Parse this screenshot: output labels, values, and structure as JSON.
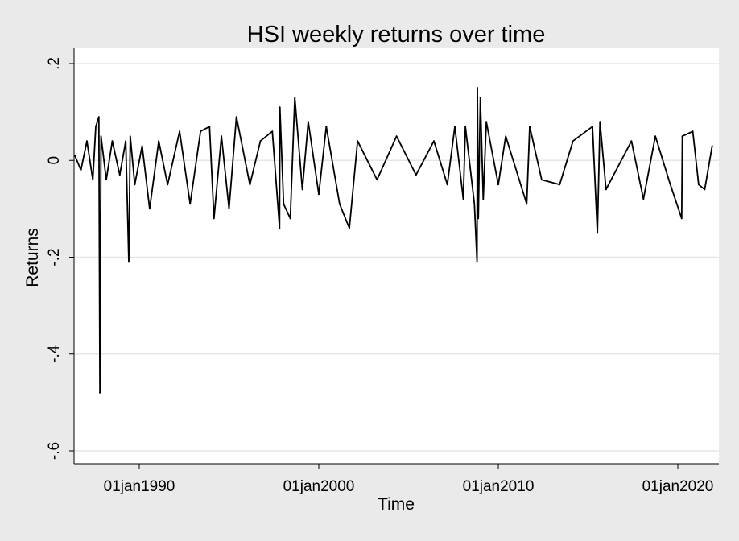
{
  "chart_data": {
    "type": "line",
    "title": "HSI weekly returns over time",
    "xlabel": "Time",
    "ylabel": "Returns",
    "ylim": [
      -0.6,
      0.2
    ],
    "xlim": [
      "1986-06-01",
      "2021-12-31"
    ],
    "y_ticks": [
      {
        "value": -0.6,
        "label": "-.6"
      },
      {
        "value": -0.4,
        "label": "-.4"
      },
      {
        "value": -0.2,
        "label": "-.2"
      },
      {
        "value": 0,
        "label": "0"
      },
      {
        "value": 0.2,
        "label": ".2"
      }
    ],
    "x_ticks": [
      {
        "value": "1990-01-01",
        "label": "01jan1990"
      },
      {
        "value": "2000-01-01",
        "label": "01jan2000"
      },
      {
        "value": "2010-01-01",
        "label": "01jan2010"
      },
      {
        "value": "2020-01-01",
        "label": "01jan2020"
      }
    ],
    "grid": true,
    "line_color": "#000000",
    "plot_background": "#ffffff",
    "page_background": "#eaeaea",
    "series": [
      {
        "points": [
          {
            "x": "1986-06-01",
            "y": 0.01
          },
          {
            "x": "1986-10-01",
            "y": -0.02
          },
          {
            "x": "1987-02-01",
            "y": 0.04
          },
          {
            "x": "1987-06-01",
            "y": -0.04
          },
          {
            "x": "1987-08-01",
            "y": 0.07
          },
          {
            "x": "1987-10-01",
            "y": 0.09
          },
          {
            "x": "1987-10-23",
            "y": -0.48
          },
          {
            "x": "1987-11-15",
            "y": 0.05
          },
          {
            "x": "1988-03-01",
            "y": -0.04
          },
          {
            "x": "1988-07-01",
            "y": 0.04
          },
          {
            "x": "1988-12-01",
            "y": -0.03
          },
          {
            "x": "1989-04-01",
            "y": 0.04
          },
          {
            "x": "1989-06-02",
            "y": -0.21
          },
          {
            "x": "1989-07-01",
            "y": 0.05
          },
          {
            "x": "1989-10-01",
            "y": -0.05
          },
          {
            "x": "1990-03-01",
            "y": 0.03
          },
          {
            "x": "1990-08-01",
            "y": -0.1
          },
          {
            "x": "1991-02-01",
            "y": 0.04
          },
          {
            "x": "1991-08-01",
            "y": -0.05
          },
          {
            "x": "1992-04-01",
            "y": 0.06
          },
          {
            "x": "1992-11-01",
            "y": -0.09
          },
          {
            "x": "1993-06-01",
            "y": 0.06
          },
          {
            "x": "1993-12-01",
            "y": 0.07
          },
          {
            "x": "1994-03-01",
            "y": -0.12
          },
          {
            "x": "1994-08-01",
            "y": 0.05
          },
          {
            "x": "1995-01-01",
            "y": -0.1
          },
          {
            "x": "1995-06-01",
            "y": 0.09
          },
          {
            "x": "1996-03-01",
            "y": -0.05
          },
          {
            "x": "1996-10-01",
            "y": 0.04
          },
          {
            "x": "1997-06-01",
            "y": 0.06
          },
          {
            "x": "1997-10-25",
            "y": -0.14
          },
          {
            "x": "1997-11-01",
            "y": 0.11
          },
          {
            "x": "1998-01-15",
            "y": -0.09
          },
          {
            "x": "1998-06-01",
            "y": -0.12
          },
          {
            "x": "1998-09-01",
            "y": 0.13
          },
          {
            "x": "1999-02-01",
            "y": -0.06
          },
          {
            "x": "1999-06-01",
            "y": 0.08
          },
          {
            "x": "2000-01-01",
            "y": -0.07
          },
          {
            "x": "2000-06-01",
            "y": 0.07
          },
          {
            "x": "2001-03-01",
            "y": -0.09
          },
          {
            "x": "2001-09-15",
            "y": -0.14
          },
          {
            "x": "2002-03-01",
            "y": 0.04
          },
          {
            "x": "2003-04-01",
            "y": -0.04
          },
          {
            "x": "2004-05-01",
            "y": 0.05
          },
          {
            "x": "2005-06-01",
            "y": -0.03
          },
          {
            "x": "2006-06-01",
            "y": 0.04
          },
          {
            "x": "2007-03-01",
            "y": -0.05
          },
          {
            "x": "2007-08-01",
            "y": 0.07
          },
          {
            "x": "2008-01-20",
            "y": -0.08
          },
          {
            "x": "2008-03-01",
            "y": 0.07
          },
          {
            "x": "2008-09-01",
            "y": -0.09
          },
          {
            "x": "2008-10-25",
            "y": -0.21
          },
          {
            "x": "2008-11-01",
            "y": 0.15
          },
          {
            "x": "2008-11-20",
            "y": -0.12
          },
          {
            "x": "2009-01-01",
            "y": 0.13
          },
          {
            "x": "2009-03-01",
            "y": -0.08
          },
          {
            "x": "2009-05-01",
            "y": 0.08
          },
          {
            "x": "2010-01-01",
            "y": -0.05
          },
          {
            "x": "2010-06-01",
            "y": 0.05
          },
          {
            "x": "2011-08-01",
            "y": -0.09
          },
          {
            "x": "2011-10-01",
            "y": 0.07
          },
          {
            "x": "2012-06-01",
            "y": -0.04
          },
          {
            "x": "2013-06-01",
            "y": -0.05
          },
          {
            "x": "2014-03-01",
            "y": 0.04
          },
          {
            "x": "2015-04-01",
            "y": 0.07
          },
          {
            "x": "2015-07-10",
            "y": -0.15
          },
          {
            "x": "2015-09-01",
            "y": 0.08
          },
          {
            "x": "2016-01-01",
            "y": -0.06
          },
          {
            "x": "2017-06-01",
            "y": 0.04
          },
          {
            "x": "2018-02-01",
            "y": -0.08
          },
          {
            "x": "2018-10-01",
            "y": 0.05
          },
          {
            "x": "2019-08-01",
            "y": -0.05
          },
          {
            "x": "2020-03-20",
            "y": -0.12
          },
          {
            "x": "2020-04-01",
            "y": 0.05
          },
          {
            "x": "2020-11-01",
            "y": 0.06
          },
          {
            "x": "2021-03-01",
            "y": -0.05
          },
          {
            "x": "2021-07-01",
            "y": -0.06
          },
          {
            "x": "2021-12-01",
            "y": 0.03
          }
        ]
      }
    ]
  }
}
